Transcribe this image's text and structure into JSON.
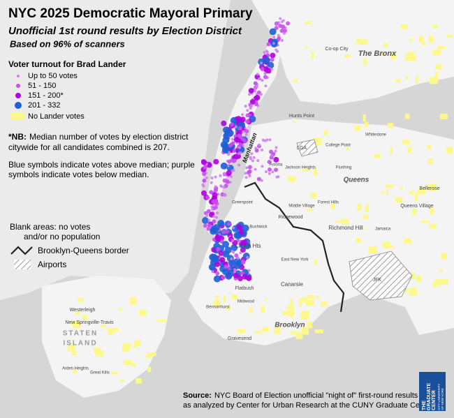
{
  "header": {
    "title": "NYC 2025 Democratic Mayoral Primary",
    "subtitle": "Unofficial 1st round results by Election District",
    "subtitle2": "Based on 96% of scanners"
  },
  "legend": {
    "title": "Voter turnout for Brad Lander",
    "items": [
      {
        "label": "Up to 50 votes",
        "color": "#d27ff0"
      },
      {
        "label": "51 - 150",
        "color": "#c84ff0"
      },
      {
        "label": "151 - 200*",
        "color": "#b000e0"
      },
      {
        "label": "201 - 332",
        "color": "#1f5fd6"
      },
      {
        "label": "No Lander votes",
        "color": "#fdf88a"
      }
    ]
  },
  "notes": {
    "nb_label": "*NB:",
    "nb_lines": [
      "Median number of votes by election district",
      "citywide for all candidates combined is 207."
    ],
    "symbols_lines": [
      "Blue symbols indicate votes above median; purple",
      "symbols indicate votes below median."
    ],
    "blank_lines": [
      "Blank areas: no votes",
      "and/or no population"
    ],
    "border": "Brooklyn-Queens border",
    "airports": "Airports"
  },
  "places": [
    "The Bronx",
    "Queens",
    "Brooklyn",
    "STATEN",
    "ISLAND",
    "Manhattan",
    "LGA",
    "JFK",
    "Hunts Point",
    "Astoria",
    "Jackson Heights",
    "Flushing",
    "Forest Hills",
    "Richmond Hill",
    "Ridgewood",
    "Crown Hts",
    "Flatbush",
    "Canarsie",
    "Gravesend",
    "Bellerose",
    "Queens Village",
    "Co-op City",
    "Westerleigh",
    "New Springville-Travis",
    "Arden Heights",
    "Great Kills",
    "East New York",
    "Midwood",
    "Bensonhurst",
    "College Point",
    "Whitestone",
    "Jamaica",
    "Middle Village",
    "Greenpoint",
    "Bushwick"
  ],
  "source": {
    "label": "Source:",
    "lines": [
      "NYC Board of Election unofficial \"night of\" first-round results",
      "as analyzed by Center for Urban Research at the CUNY Graduate Center."
    ]
  },
  "logo": {
    "lines": [
      "THE",
      "GRADUATE",
      "CENTER"
    ],
    "sub": [
      "CITY UNIVERSITY",
      "OF NEW YORK"
    ]
  }
}
